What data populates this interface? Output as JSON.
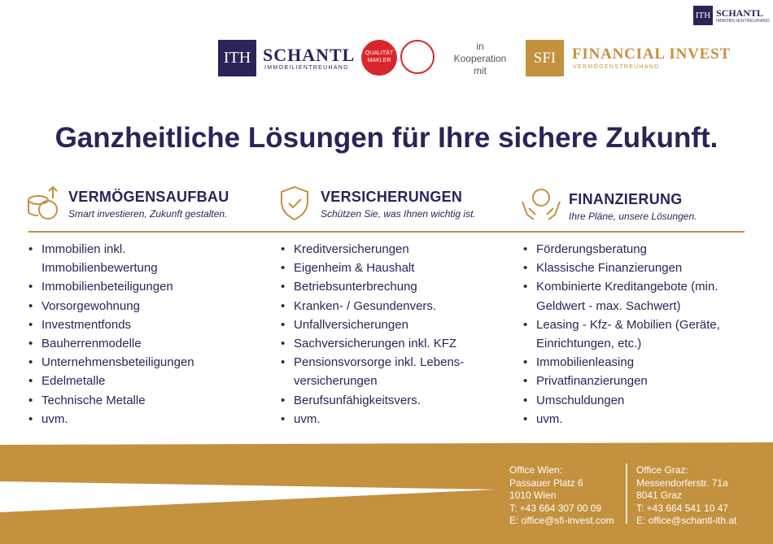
{
  "header": {
    "small_logo": {
      "mark": "ITH",
      "name": "SCHANTL",
      "sub": "IMMOBILIENTREUHAND"
    },
    "logo_left": {
      "mark": "ITH",
      "name": "SCHANTL",
      "sub": "IMMOBILIENTREUHAND"
    },
    "badge": {
      "line1": "QUALITÄT",
      "line2": "MAKLER"
    },
    "cooperation": [
      "in",
      "Kooperation",
      "mit"
    ],
    "logo_right": {
      "mark": "SFI",
      "name": "FINANCIAL INVEST",
      "sub": "VERMÖGENSTREUHAND"
    }
  },
  "title": "Ganzheitliche Lösungen für Ihre sichere Zukunft.",
  "columns": [
    {
      "heading": "VERMÖGENSAUFBAU",
      "subtitle": "Smart investieren, Zukunft gestalten.",
      "items": [
        "Immobilien inkl. Immobilienbewertung",
        "Immobilienbeteiligungen",
        "Vorsorgewohnung",
        "Investmentfonds",
        "Bauherrenmodelle",
        "Unternehmensbeteiligungen",
        "Edelmetalle",
        "Technische Metalle",
        "uvm."
      ]
    },
    {
      "heading": "VERSICHERUNGEN",
      "subtitle": "Schützen Sie, was Ihnen wichtig ist.",
      "items": [
        "Kreditversicherungen",
        "Eigenheim & Haushalt",
        "Betriebsunterbrechung",
        "Kranken- / Gesundenvers.",
        "Unfallversicherungen",
        "Sachversicherungen inkl. KFZ",
        "Pensionsvorsorge inkl. Lebens-versicherungen",
        "Berufsunfähigkeitsvers.",
        "uvm."
      ]
    },
    {
      "heading": "FINANZIERUNG",
      "subtitle": "Ihre Pläne, unsere Lösungen.",
      "items": [
        "Förderungsberatung",
        "Klassische Finanzierungen",
        "Kombinierte Kreditangebote (min. Geldwert - max. Sachwert)",
        "Leasing - Kfz- & Mobilien (Geräte, Einrichtungen, etc.)",
        "Immobilienleasing",
        "Privatfinanzierungen",
        "Umschuldungen",
        "uvm."
      ]
    }
  ],
  "offices": [
    [
      "Office Wien:",
      "Passauer Platz 6",
      "1010 Wien",
      "T: +43 664 307 00 09",
      "E: office@sfi-invest.com"
    ],
    [
      "Office Graz:",
      "Messendorferstr. 71a",
      "8041 Graz",
      "T: +43 664 541 10 47",
      "E: office@schantl-ith.at"
    ]
  ]
}
